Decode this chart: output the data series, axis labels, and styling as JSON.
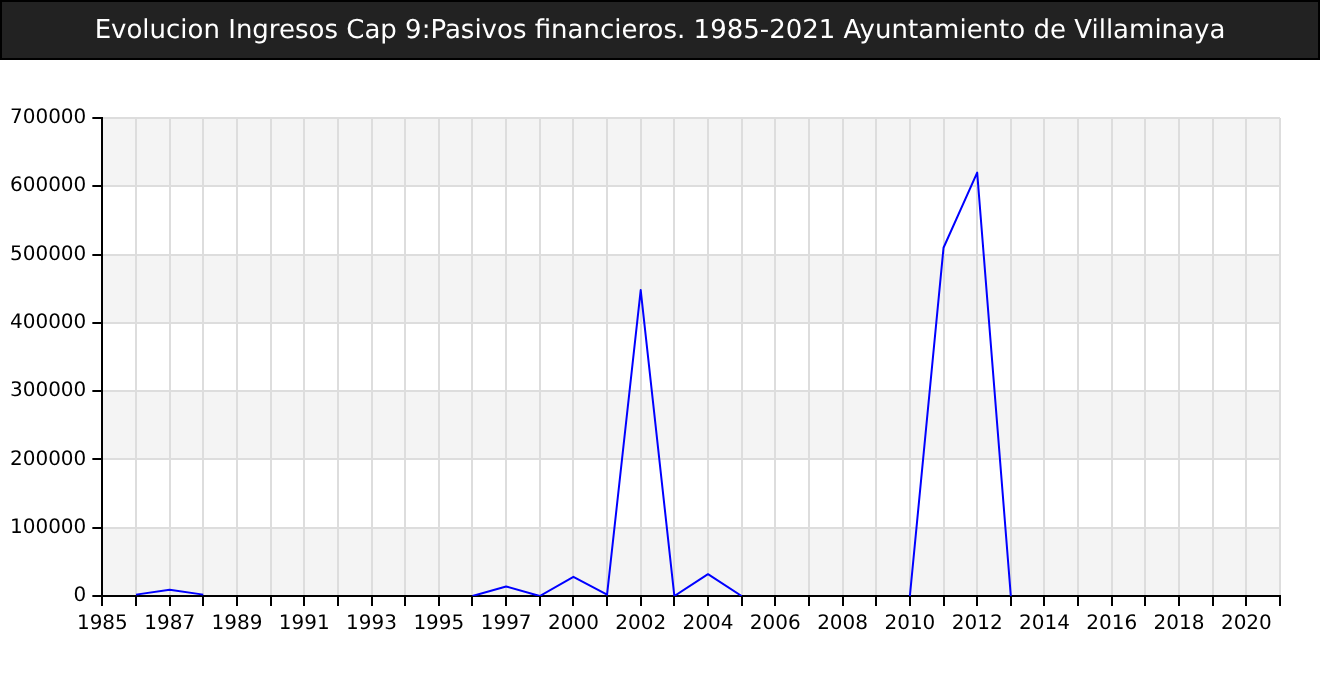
{
  "chart_data": {
    "type": "line",
    "title": "Evolucion Ingresos Cap 9:Pasivos financieros. 1985-2021 Ayuntamiento de Villaminaya",
    "categories": [
      "1985",
      null,
      "1987",
      null,
      "1989",
      null,
      "1991",
      null,
      "1993",
      null,
      "1995",
      null,
      "1997",
      null,
      "2000",
      null,
      "2002",
      null,
      "2004",
      null,
      "2006",
      null,
      "2008",
      null,
      "2010",
      null,
      "2012",
      null,
      "2014",
      null,
      "2016",
      null,
      "2018",
      null,
      "2020",
      null
    ],
    "series": [
      {
        "color": "#0000ff",
        "values": [
          null,
          2000,
          9000,
          2000,
          null,
          null,
          null,
          null,
          null,
          null,
          null,
          0,
          14000,
          0,
          28000,
          2000,
          448000,
          0,
          32000,
          0,
          null,
          null,
          null,
          null,
          0,
          510000,
          620000,
          0,
          null,
          null,
          null,
          null,
          null,
          null,
          null,
          null
        ]
      }
    ],
    "ylim": [
      0,
      700000
    ],
    "yticks": [
      0,
      100000,
      200000,
      300000,
      400000,
      500000,
      600000,
      700000
    ],
    "grid": true,
    "legend": false,
    "marker": "none",
    "line_style": "solid"
  }
}
